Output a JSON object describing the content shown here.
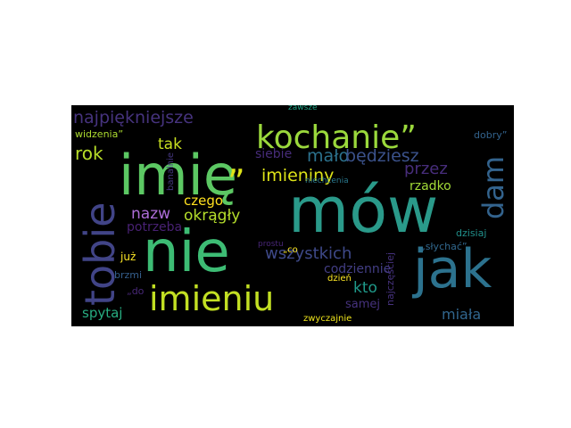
{
  "words": [
    {
      "text": "mów",
      "color": "#2a9a8a"
    },
    {
      "text": "imię",
      "color": "#5cc863"
    },
    {
      "text": "nie",
      "color": "#3dbc74"
    },
    {
      "text": "jak",
      "color": "#2c728e"
    },
    {
      "text": "kochanie”",
      "color": "#9bd93c"
    },
    {
      "text": "tobie",
      "color": "#414487"
    },
    {
      "text": "imieniu",
      "color": "#c2df23"
    },
    {
      "text": "dam",
      "color": "#33638d"
    },
    {
      "text": "najpiękniejsze",
      "color": "#46337e"
    },
    {
      "text": "„",
      "color": "#dde318"
    },
    {
      "text": "imieniny",
      "color": "#dde318"
    },
    {
      "text": "mało",
      "color": "#2c728e"
    },
    {
      "text": "będziesz",
      "color": "#3b528b"
    },
    {
      "text": "przez",
      "color": "#472d7b"
    },
    {
      "text": "rok",
      "color": "#b8de29"
    },
    {
      "text": "tak",
      "color": "#c8e020"
    },
    {
      "text": "siebie",
      "color": "#472c7a"
    },
    {
      "text": "rzadko",
      "color": "#a2da37"
    },
    {
      "text": "nazw",
      "color": "#ad6dd8"
    },
    {
      "text": "okrągły",
      "color": "#b5de2b"
    },
    {
      "text": "czego",
      "color": "#ffe01f"
    },
    {
      "text": "potrzeba",
      "color": "#482173"
    },
    {
      "text": "wszystkich",
      "color": "#3e4989"
    },
    {
      "text": "codziennie",
      "color": "#433e85"
    },
    {
      "text": "kto",
      "color": "#1f9a8a"
    },
    {
      "text": "miała",
      "color": "#31668e"
    },
    {
      "text": "spytaj",
      "color": "#27ad81"
    },
    {
      "text": "samej",
      "color": "#46327e"
    },
    {
      "text": "zwyczajnie",
      "color": "#efe51c"
    },
    {
      "text": "dzień",
      "color": "#fde725"
    },
    {
      "text": "najczęściej",
      "color": "#46327e"
    },
    {
      "text": "„słychać”",
      "color": "#31688e"
    },
    {
      "text": "dzisiaj",
      "color": "#21918c"
    },
    {
      "text": "dobry”",
      "color": "#33638d"
    },
    {
      "text": "niechcenia",
      "color": "#2a788e"
    },
    {
      "text": "prostu",
      "color": "#482677"
    },
    {
      "text": "„co",
      "color": "#fde725"
    },
    {
      "text": "już",
      "color": "#fde725"
    },
    {
      "text": "brzmi",
      "color": "#355f8d"
    },
    {
      "text": "„do",
      "color": "#482878"
    },
    {
      "text": "banalnie",
      "color": "#453781"
    },
    {
      "text": "widzenia”",
      "color": "#addc30"
    },
    {
      "text": "zawsze",
      "color": "#20a386"
    }
  ]
}
